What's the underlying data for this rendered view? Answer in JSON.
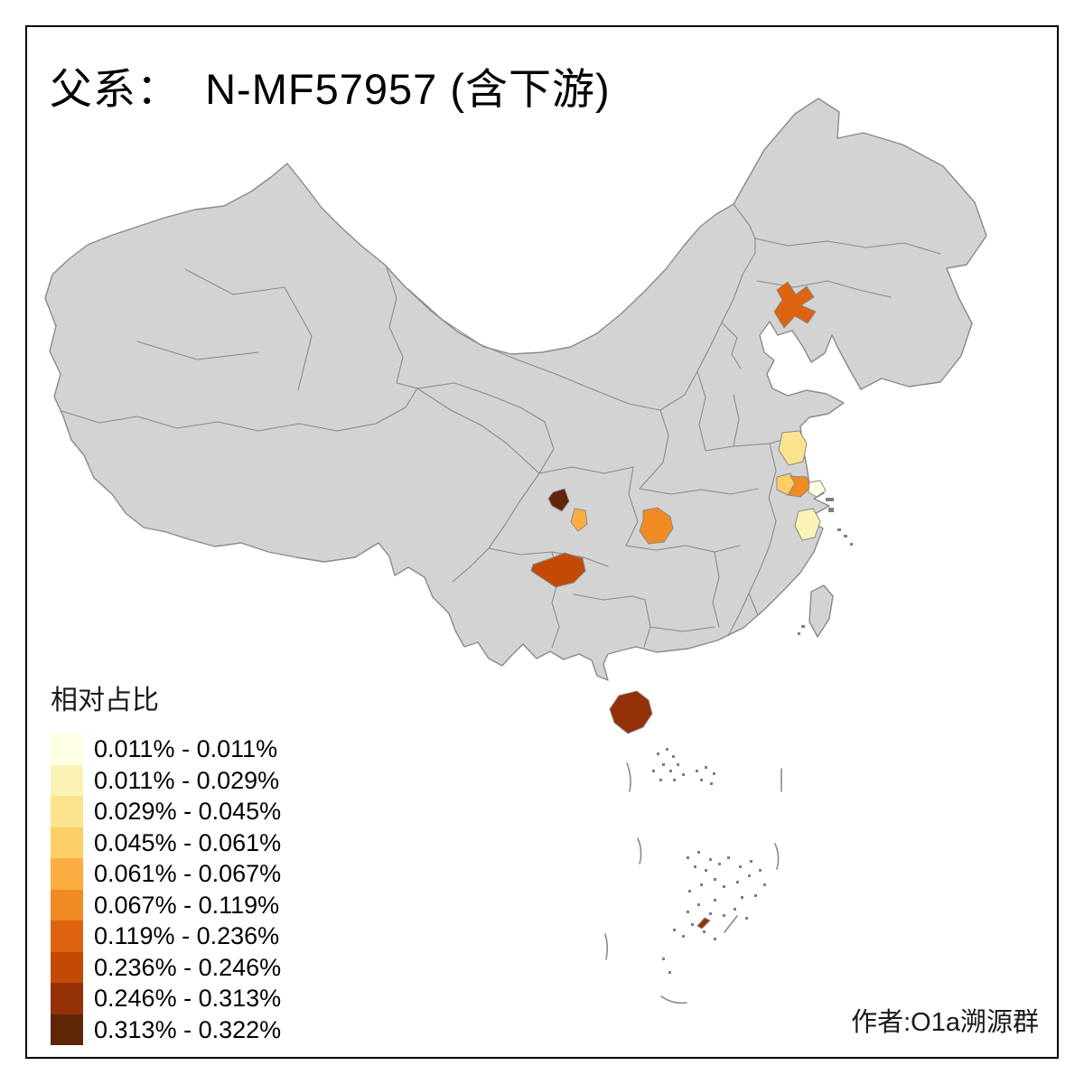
{
  "title": "父系：  N-MF57957 (含下游)",
  "attribution": "作者:O1a溯源群",
  "legend": {
    "title": "相对占比",
    "items": [
      {
        "range": "0.011% - 0.011%",
        "color": "#FFFFE5"
      },
      {
        "range": "0.011% - 0.029%",
        "color": "#FAF3B5"
      },
      {
        "range": "0.029% - 0.045%",
        "color": "#FCE38E"
      },
      {
        "range": "0.045% - 0.061%",
        "color": "#FCCF66"
      },
      {
        "range": "0.061% - 0.067%",
        "color": "#FBAD41"
      },
      {
        "range": "0.067% - 0.119%",
        "color": "#F08A22"
      },
      {
        "range": "0.119% - 0.236%",
        "color": "#DD6311"
      },
      {
        "range": "0.236% - 0.246%",
        "color": "#C34A04"
      },
      {
        "range": "0.246% - 0.313%",
        "color": "#953108"
      },
      {
        "range": "0.313% - 0.322%",
        "color": "#5F2507"
      }
    ]
  },
  "map": {
    "land_color": "#D3D3D3",
    "border_color": "#8A8A8A",
    "background_color": "#FFFFFF",
    "regions": [
      {
        "id": "liaoning-highlight",
        "band": "0.119% - 0.236%",
        "color": "#DD6311"
      },
      {
        "id": "jiangsu-north",
        "band": "0.029% - 0.045%",
        "color": "#FCE38E"
      },
      {
        "id": "jiangsu-west",
        "band": "0.045% - 0.061%",
        "color": "#FCCF66"
      },
      {
        "id": "jiangsu-east",
        "band": "0.067% - 0.119%",
        "color": "#F08A22"
      },
      {
        "id": "jiangsu-coast",
        "band": "0.011% - 0.011%",
        "color": "#FFFFE5"
      },
      {
        "id": "zhejiang-north",
        "band": "0.011% - 0.029%",
        "color": "#FAF3B5"
      },
      {
        "id": "sichuan-northwest",
        "band": "0.313% - 0.322%",
        "color": "#5F2507"
      },
      {
        "id": "sichuan-central",
        "band": "0.061% - 0.067%",
        "color": "#FBAD41"
      },
      {
        "id": "hubei-central",
        "band": "0.067% - 0.119%",
        "color": "#F08A22"
      },
      {
        "id": "guizhou-west",
        "band": "0.236% - 0.246%",
        "color": "#C34A04"
      },
      {
        "id": "hainan",
        "band": "0.246% - 0.313%",
        "color": "#953108"
      },
      {
        "id": "south-sea-island",
        "band": "0.246% - 0.313%",
        "color": "#953108"
      }
    ]
  }
}
